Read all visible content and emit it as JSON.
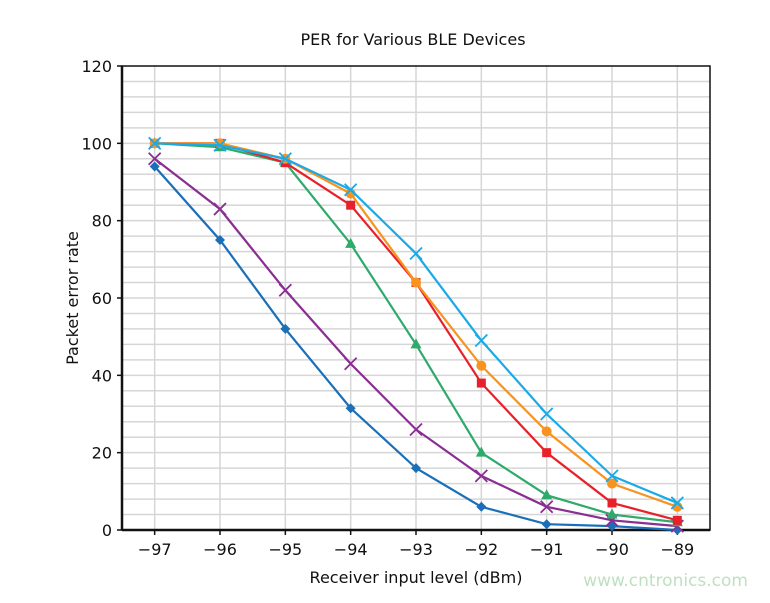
{
  "chart_data": {
    "type": "line",
    "title": "PER for Various BLE Devices",
    "xlabel": "Receiver input level (dBm)",
    "ylabel": "Packet error rate",
    "x": [
      -97,
      -96,
      -95,
      -94,
      -93,
      -92,
      -91,
      -90,
      -89
    ],
    "xlim": [
      -97.5,
      -88.5
    ],
    "ylim": [
      0,
      120
    ],
    "yticks": [
      0,
      20,
      40,
      60,
      80,
      100,
      120
    ],
    "xtick_labels": [
      "−97",
      "−96",
      "−95",
      "−94",
      "−93",
      "−92",
      "−91",
      "−90",
      "−89"
    ],
    "grid": true,
    "legend": "none",
    "series": [
      {
        "color": "#1a6fb8",
        "marker": "diamond",
        "values": [
          94,
          75,
          52,
          31.5,
          16,
          6,
          1.5,
          1,
          0
        ]
      },
      {
        "color": "#8a2e93",
        "marker": "x",
        "values": [
          96,
          83,
          62,
          43,
          26,
          14,
          6,
          2.5,
          1
        ]
      },
      {
        "color": "#2eaa6a",
        "marker": "triangle",
        "values": [
          100,
          99,
          95,
          74,
          48,
          20,
          9,
          4,
          2
        ]
      },
      {
        "color": "#e8202a",
        "marker": "square",
        "values": [
          100,
          100,
          95,
          84,
          64,
          38,
          20,
          7,
          2.5
        ]
      },
      {
        "color": "#f7931e",
        "marker": "circle",
        "values": [
          100,
          100,
          96,
          87,
          64,
          42.5,
          25.5,
          12,
          6
        ]
      },
      {
        "color": "#1aaae6",
        "marker": "x",
        "values": [
          100,
          99.5,
          96,
          88,
          71.5,
          49,
          30,
          14,
          7
        ]
      }
    ]
  },
  "watermark": "www.cntronics.com"
}
